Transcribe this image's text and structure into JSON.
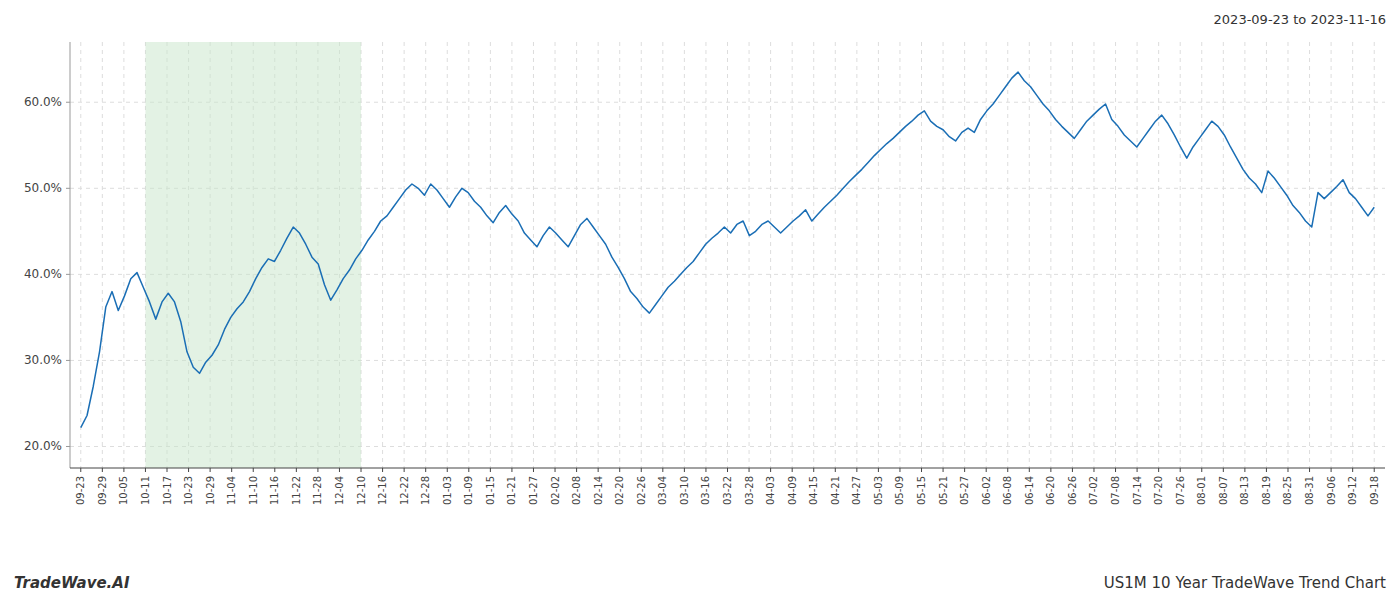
{
  "chart_data": {
    "type": "line",
    "title": "US1M 10 Year TradeWave Trend Chart",
    "subtitle": "2023-09-23 to 2023-11-16",
    "annotations": [
      "TradeWave.AI"
    ],
    "color": "#1a6eb5",
    "grid": true,
    "highlight": {
      "start": 3,
      "end": 13,
      "color": "#c8e6c9"
    },
    "xlim": [
      -0.5,
      60.5
    ],
    "xticks": [
      {
        "value": 0,
        "label": "09-23"
      },
      {
        "value": 1,
        "label": "09-29"
      },
      {
        "value": 2,
        "label": "10-05"
      },
      {
        "value": 3,
        "label": "10-11"
      },
      {
        "value": 4,
        "label": "10-17"
      },
      {
        "value": 5,
        "label": "10-23"
      },
      {
        "value": 6,
        "label": "10-29"
      },
      {
        "value": 7,
        "label": "11-04"
      },
      {
        "value": 8,
        "label": "11-10"
      },
      {
        "value": 9,
        "label": "11-16"
      },
      {
        "value": 10,
        "label": "11-22"
      },
      {
        "value": 11,
        "label": "11-28"
      },
      {
        "value": 12,
        "label": "12-04"
      },
      {
        "value": 13,
        "label": "12-10"
      },
      {
        "value": 14,
        "label": "12-16"
      },
      {
        "value": 15,
        "label": "12-22"
      },
      {
        "value": 16,
        "label": "12-28"
      },
      {
        "value": 17,
        "label": "01-03"
      },
      {
        "value": 18,
        "label": "01-09"
      },
      {
        "value": 19,
        "label": "01-15"
      },
      {
        "value": 20,
        "label": "01-21"
      },
      {
        "value": 21,
        "label": "01-27"
      },
      {
        "value": 22,
        "label": "02-02"
      },
      {
        "value": 23,
        "label": "02-08"
      },
      {
        "value": 24,
        "label": "02-14"
      },
      {
        "value": 25,
        "label": "02-20"
      },
      {
        "value": 26,
        "label": "02-26"
      },
      {
        "value": 27,
        "label": "03-04"
      },
      {
        "value": 28,
        "label": "03-10"
      },
      {
        "value": 29,
        "label": "03-16"
      },
      {
        "value": 30,
        "label": "03-22"
      },
      {
        "value": 31,
        "label": "03-28"
      },
      {
        "value": 32,
        "label": "04-03"
      },
      {
        "value": 33,
        "label": "04-09"
      },
      {
        "value": 34,
        "label": "04-15"
      },
      {
        "value": 35,
        "label": "04-21"
      },
      {
        "value": 36,
        "label": "04-27"
      },
      {
        "value": 37,
        "label": "05-03"
      },
      {
        "value": 38,
        "label": "05-09"
      },
      {
        "value": 39,
        "label": "05-15"
      },
      {
        "value": 40,
        "label": "05-21"
      },
      {
        "value": 41,
        "label": "05-27"
      },
      {
        "value": 42,
        "label": "06-02"
      },
      {
        "value": 43,
        "label": "06-08"
      },
      {
        "value": 44,
        "label": "06-14"
      },
      {
        "value": 45,
        "label": "06-20"
      },
      {
        "value": 46,
        "label": "06-26"
      },
      {
        "value": 47,
        "label": "07-02"
      },
      {
        "value": 48,
        "label": "07-08"
      },
      {
        "value": 49,
        "label": "07-14"
      },
      {
        "value": 50,
        "label": "07-20"
      },
      {
        "value": 51,
        "label": "07-26"
      },
      {
        "value": 52,
        "label": "08-01"
      },
      {
        "value": 53,
        "label": "08-07"
      },
      {
        "value": 54,
        "label": "08-13"
      },
      {
        "value": 55,
        "label": "08-19"
      },
      {
        "value": 56,
        "label": "08-25"
      },
      {
        "value": 57,
        "label": "08-31"
      },
      {
        "value": 58,
        "label": "09-06"
      },
      {
        "value": 59,
        "label": "09-12"
      },
      {
        "value": 60,
        "label": "09-18"
      }
    ],
    "ylim": [
      0.175,
      0.67
    ],
    "yticks": [
      {
        "value": 0.2,
        "label": "20.0%"
      },
      {
        "value": 0.3,
        "label": "30.0%"
      },
      {
        "value": 0.4,
        "label": "40.0%"
      },
      {
        "value": 0.5,
        "label": "50.0%"
      },
      {
        "value": 0.6,
        "label": "60.0%"
      }
    ],
    "x": [
      0,
      0.2899,
      0.5797,
      0.8696,
      1.1594,
      1.4493,
      1.7391,
      2.029,
      2.3188,
      2.6087,
      2.8986,
      3.1884,
      3.4783,
      3.7681,
      4.058,
      4.3478,
      4.6377,
      4.9275,
      5.2174,
      5.5072,
      5.7971,
      6.087,
      6.3768,
      6.6667,
      6.9565,
      7.2464,
      7.5362,
      7.8261,
      8.1159,
      8.4058,
      8.6957,
      8.9855,
      9.2754,
      9.5652,
      9.8551,
      10.1449,
      10.4348,
      10.7246,
      11.0145,
      11.3043,
      11.5942,
      11.8841,
      12.1739,
      12.4638,
      12.7536,
      13.0435,
      13.3333,
      13.6232,
      13.913,
      14.2029,
      14.4928,
      14.7826,
      15.0725,
      15.3623,
      15.6522,
      15.942,
      16.2319,
      16.5217,
      16.8116,
      17.1014,
      17.3913,
      17.6812,
      17.971,
      18.2609,
      18.5507,
      18.8406,
      19.1304,
      19.4203,
      19.7101,
      20,
      20.2899,
      20.5797,
      20.8696,
      21.1594,
      21.4493,
      21.7391,
      22.029,
      22.3188,
      22.6087,
      22.8986,
      23.1884,
      23.4783,
      23.7681,
      24.058,
      24.3478,
      24.6377,
      24.9275,
      25.2174,
      25.5072,
      25.7971,
      26.087,
      26.3768,
      26.6667,
      26.9565,
      27.2464,
      27.5362,
      27.8261,
      28.1159,
      28.4058,
      28.6957,
      28.9855,
      29.2754,
      29.5652,
      29.8551,
      30.1449,
      30.4348,
      30.7246,
      31.0145,
      31.3043,
      31.5942,
      31.8841,
      32.1739,
      32.4638,
      32.7536,
      33.0435,
      33.3333,
      33.6232,
      33.913,
      34.2029,
      34.4928,
      34.7826,
      35.0725,
      35.3623,
      35.6522,
      35.942,
      36.2319,
      36.5217,
      36.8116,
      37.1014,
      37.3913,
      37.6812,
      37.971,
      38.2609,
      38.5507,
      38.8406,
      39.1304,
      39.4203,
      39.7101,
      40,
      40.2899,
      40.5797,
      40.8696,
      41.1594,
      41.4493,
      41.7391,
      42.029,
      42.3188,
      42.6087,
      42.8986,
      43.1884,
      43.4783,
      43.7681,
      44.058,
      44.3478,
      44.6377,
      44.9275,
      45.2174,
      45.5072,
      45.7971,
      46.087,
      46.3768,
      46.6667,
      46.9565,
      47.2464,
      47.5362,
      47.8261,
      48.1159,
      48.4058,
      48.6957,
      48.9855,
      49.2754,
      49.5652,
      49.8551,
      50.1449,
      50.4348,
      50.7246,
      51.0145,
      51.3043,
      51.5942,
      51.8841,
      52.1739,
      52.4638,
      52.7536,
      53.0435,
      53.3333,
      53.6232,
      53.913,
      54.2029,
      54.4928,
      54.7826,
      55.0725,
      55.3623,
      55.6522,
      55.942,
      56.2319,
      56.5217,
      56.8116,
      57.1014,
      57.3913,
      57.6812,
      57.971,
      58.2609,
      58.5507,
      58.8406,
      59.1304,
      59.4203,
      59.7101,
      60
    ],
    "values": [
      0.222,
      0.236,
      0.27,
      0.31,
      0.362,
      0.38,
      0.358,
      0.375,
      0.395,
      0.402,
      0.385,
      0.368,
      0.348,
      0.368,
      0.378,
      0.368,
      0.345,
      0.31,
      0.292,
      0.285,
      0.298,
      0.306,
      0.318,
      0.336,
      0.35,
      0.36,
      0.368,
      0.38,
      0.395,
      0.408,
      0.418,
      0.415,
      0.428,
      0.442,
      0.455,
      0.448,
      0.435,
      0.42,
      0.412,
      0.388,
      0.37,
      0.382,
      0.395,
      0.405,
      0.418,
      0.428,
      0.44,
      0.45,
      0.462,
      0.468,
      0.478,
      0.488,
      0.498,
      0.505,
      0.5,
      0.492,
      0.505,
      0.498,
      0.488,
      0.478,
      0.49,
      0.5,
      0.495,
      0.485,
      0.478,
      0.468,
      0.46,
      0.472,
      0.48,
      0.47,
      0.462,
      0.448,
      0.44,
      0.432,
      0.445,
      0.455,
      0.448,
      0.44,
      0.432,
      0.445,
      0.458,
      0.465,
      0.455,
      0.445,
      0.435,
      0.42,
      0.408,
      0.395,
      0.38,
      0.372,
      0.362,
      0.355,
      0.365,
      0.375,
      0.385,
      0.392,
      0.4,
      0.408,
      0.415,
      0.425,
      0.435,
      0.442,
      0.448,
      0.455,
      0.448,
      0.458,
      0.462,
      0.445,
      0.45,
      0.458,
      0.462,
      0.455,
      0.448,
      0.455,
      0.462,
      0.468,
      0.475,
      0.462,
      0.47,
      0.478,
      0.485,
      0.492,
      0.5,
      0.508,
      0.515,
      0.522,
      0.53,
      0.538,
      0.545,
      0.552,
      0.558,
      0.565,
      0.572,
      0.578,
      0.585,
      0.59,
      0.578,
      0.572,
      0.568,
      0.56,
      0.555,
      0.565,
      0.57,
      0.565,
      0.58,
      0.59,
      0.598,
      0.608,
      0.618,
      0.628,
      0.635,
      0.625,
      0.618,
      0.608,
      0.598,
      0.59,
      0.58,
      0.572,
      0.565,
      0.558,
      0.568,
      0.578,
      0.585,
      0.592,
      0.598,
      0.58,
      0.572,
      0.562,
      0.555,
      0.548,
      0.558,
      0.568,
      0.578,
      0.585,
      0.575,
      0.562,
      0.548,
      0.535,
      0.548,
      0.558,
      0.568,
      0.578,
      0.572,
      0.562,
      0.548,
      0.535,
      0.522,
      0.512,
      0.505,
      0.495,
      0.52,
      0.512,
      0.502,
      0.492,
      0.48,
      0.472,
      0.462,
      0.455,
      0.495,
      0.488,
      0.495,
      0.502,
      0.51,
      0.495,
      0.488,
      0.478,
      0.468,
      0.478
    ]
  }
}
